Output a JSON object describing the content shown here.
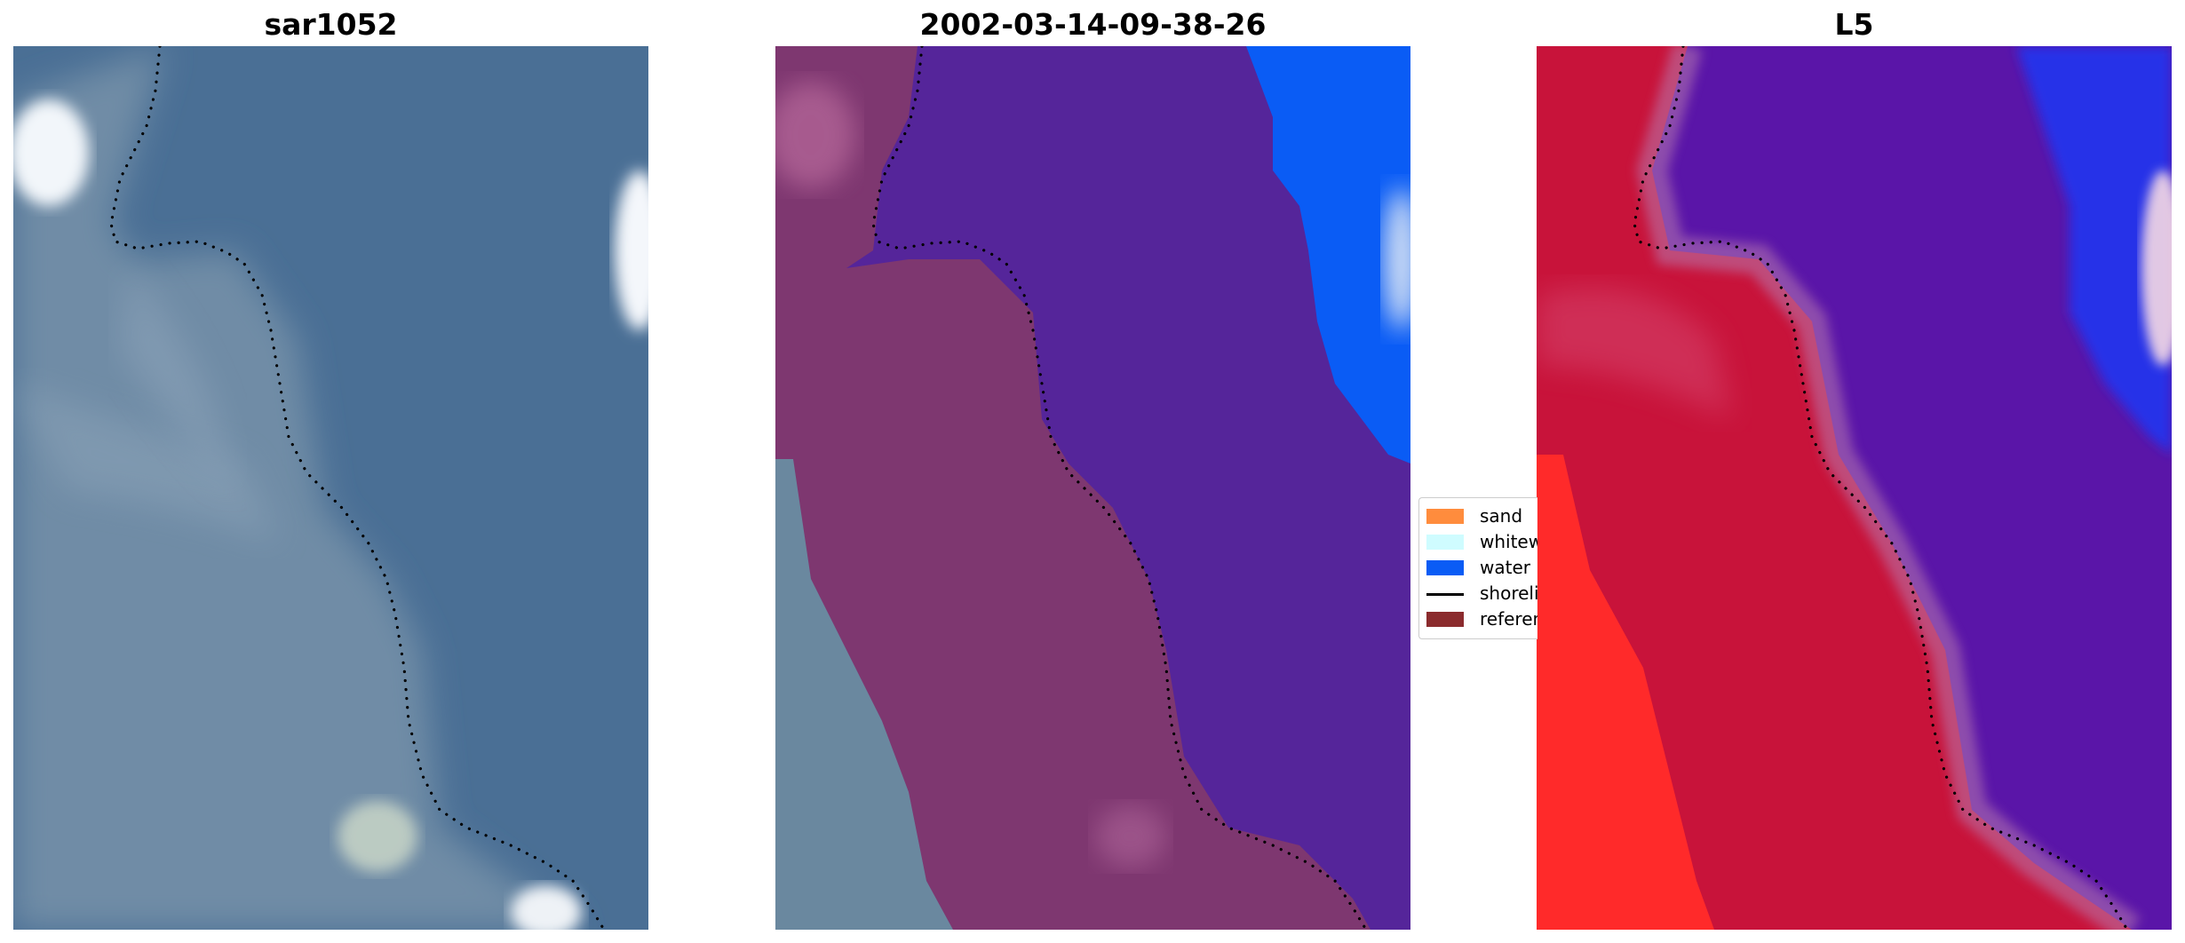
{
  "panels": [
    {
      "title": "sar1052"
    },
    {
      "title": "2002-03-14-09-38-26"
    },
    {
      "title": "L5"
    }
  ],
  "legend": {
    "items": [
      {
        "label": "sand",
        "color": "#ff8c3d",
        "kind": "patch"
      },
      {
        "label": "whitewater",
        "color": "#cffcff",
        "kind": "patch"
      },
      {
        "label": "water",
        "color": "#0a5cf5",
        "kind": "patch"
      },
      {
        "label": "shoreline",
        "color": "#000000",
        "kind": "line"
      },
      {
        "label": "reference shoreline",
        "color": "#8b2b2d",
        "kind": "patch"
      }
    ]
  },
  "colors": {
    "rgb_water": "#4a6f95",
    "rgb_land": "#6e8aa3",
    "class_land": "#7e3770",
    "class_water": "#55259a",
    "class_bright_water": "#0a5cf5",
    "index_land": "#c8133a",
    "index_water": "#5a15a8",
    "index_high": "#ff2020"
  }
}
